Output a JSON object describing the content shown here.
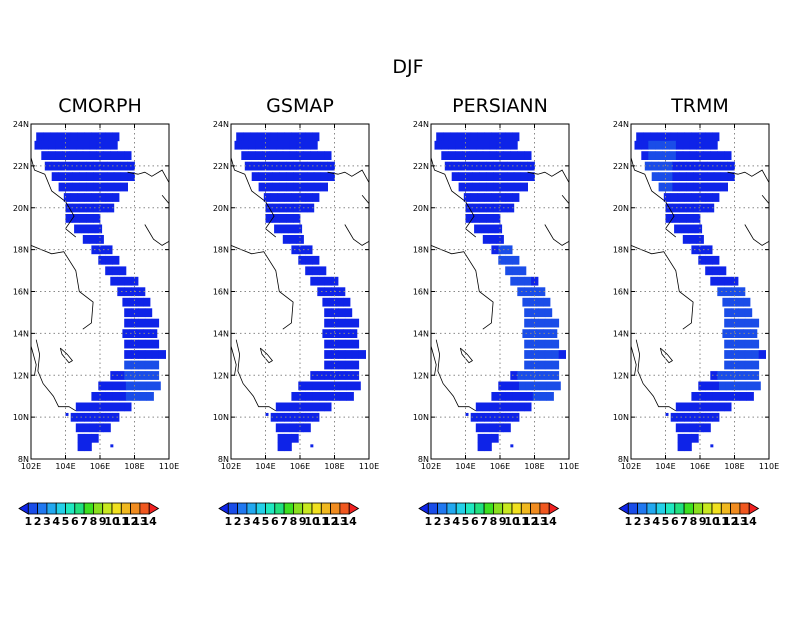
{
  "figure_title": "DJF",
  "palette": [
    "#0e23e8",
    "#1a4de8",
    "#2078f0",
    "#22a8f0",
    "#24d0e8",
    "#20e8c0",
    "#20e080",
    "#3ee020",
    "#8ce020",
    "#c8e820",
    "#f0e020",
    "#f0b820",
    "#f08c20",
    "#f05820",
    "#f02020"
  ],
  "chart_data": [
    {
      "type": "heatmap",
      "title": "CMORPH",
      "x_ticks": [
        "102E",
        "104E",
        "106E",
        "108E",
        "110E"
      ],
      "y_ticks": [
        "8N",
        "10N",
        "12N",
        "14N",
        "16N",
        "18N",
        "20N",
        "22N",
        "24N"
      ],
      "xlim": [
        102,
        110
      ],
      "ylim": [
        8,
        24
      ],
      "grid": true,
      "colorbar_labels": [
        "1",
        "2",
        "3",
        "4",
        "5",
        "6",
        "7",
        "8",
        "9",
        "10",
        "11",
        "12",
        "13",
        "14"
      ],
      "dominant_class": "1",
      "minor_class": "2",
      "minor_regions": [
        [
          107.5,
          109.5,
          11.0,
          12.8
        ]
      ]
    },
    {
      "type": "heatmap",
      "title": "GSMAP",
      "x_ticks": [
        "102E",
        "104E",
        "106E",
        "108E",
        "110E"
      ],
      "y_ticks": [
        "8N",
        "10N",
        "12N",
        "14N",
        "16N",
        "18N",
        "20N",
        "22N",
        "24N"
      ],
      "xlim": [
        102,
        110
      ],
      "ylim": [
        8,
        24
      ],
      "grid": true,
      "colorbar_labels": [
        "1",
        "2",
        "3",
        "4",
        "5",
        "6",
        "7",
        "8",
        "9",
        "10",
        "11",
        "12",
        "13",
        "14"
      ],
      "dominant_class": "1",
      "minor_class": "2",
      "minor_regions": []
    },
    {
      "type": "heatmap",
      "title": "PERSIANN",
      "x_ticks": [
        "102E",
        "104E",
        "106E",
        "108E",
        "110E"
      ],
      "y_ticks": [
        "8N",
        "10N",
        "12N",
        "14N",
        "16N",
        "18N",
        "20N",
        "22N",
        "24N"
      ],
      "xlim": [
        102,
        110
      ],
      "ylim": [
        8,
        24
      ],
      "grid": true,
      "colorbar_labels": [
        "1",
        "2",
        "3",
        "4",
        "5",
        "6",
        "7",
        "8",
        "9",
        "10",
        "11",
        "12",
        "13",
        "14"
      ],
      "dominant_class": "1",
      "minor_class": "2",
      "minor_regions": [
        [
          106.0,
          108.0,
          16.0,
          18.3
        ],
        [
          107.2,
          109.5,
          11.2,
          16.3
        ],
        [
          108.0,
          109.5,
          10.8,
          11.6
        ]
      ]
    },
    {
      "type": "heatmap",
      "title": "TRMM",
      "x_ticks": [
        "102E",
        "104E",
        "106E",
        "108E",
        "110E"
      ],
      "y_ticks": [
        "8N",
        "10N",
        "12N",
        "14N",
        "16N",
        "18N",
        "20N",
        "22N",
        "24N"
      ],
      "xlim": [
        102,
        110
      ],
      "ylim": [
        8,
        24
      ],
      "grid": true,
      "colorbar_labels": [
        "1",
        "2",
        "3",
        "4",
        "5",
        "6",
        "7",
        "8",
        "9",
        "10",
        "11",
        "12",
        "13",
        "14"
      ],
      "dominant_class": "1",
      "minor_class": "2",
      "minor_regions": [
        [
          103.0,
          104.6,
          21.0,
          23.0
        ],
        [
          107.0,
          109.5,
          11.5,
          16.3
        ]
      ]
    }
  ]
}
